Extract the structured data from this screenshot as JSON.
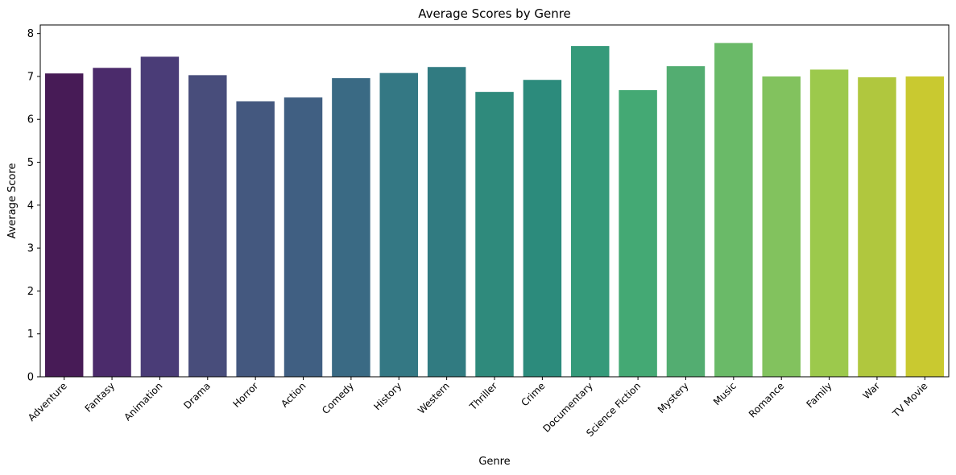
{
  "chart_data": {
    "type": "bar",
    "title": "Average Scores by Genre",
    "xlabel": "Genre",
    "ylabel": "Average Score",
    "ylim": [
      0,
      8.2
    ],
    "yticks": [
      0,
      1,
      2,
      3,
      4,
      5,
      6,
      7,
      8
    ],
    "categories": [
      "Adventure",
      "Fantasy",
      "Animation",
      "Drama",
      "Horror",
      "Action",
      "Comedy",
      "History",
      "Western",
      "Thriller",
      "Crime",
      "Documentary",
      "Science Fiction",
      "Mystery",
      "Music",
      "Romance",
      "Family",
      "War",
      "TV Movie"
    ],
    "values": [
      7.07,
      7.2,
      7.46,
      7.03,
      6.42,
      6.51,
      6.96,
      7.08,
      7.22,
      6.64,
      6.92,
      7.71,
      6.68,
      7.24,
      7.78,
      7.0,
      7.16,
      6.98,
      7.0
    ],
    "colors": [
      "#471b56",
      "#4b2b6b",
      "#4a3c77",
      "#484d7b",
      "#44587f",
      "#405f82",
      "#3a6a84",
      "#347884",
      "#317b81",
      "#2f8a7c",
      "#2c8b7c",
      "#359a7a",
      "#44a974",
      "#53ad71",
      "#6aba68",
      "#82c25e",
      "#9cc94c",
      "#b0c73e",
      "#c9c930"
    ],
    "grid": false,
    "legend": "none"
  }
}
